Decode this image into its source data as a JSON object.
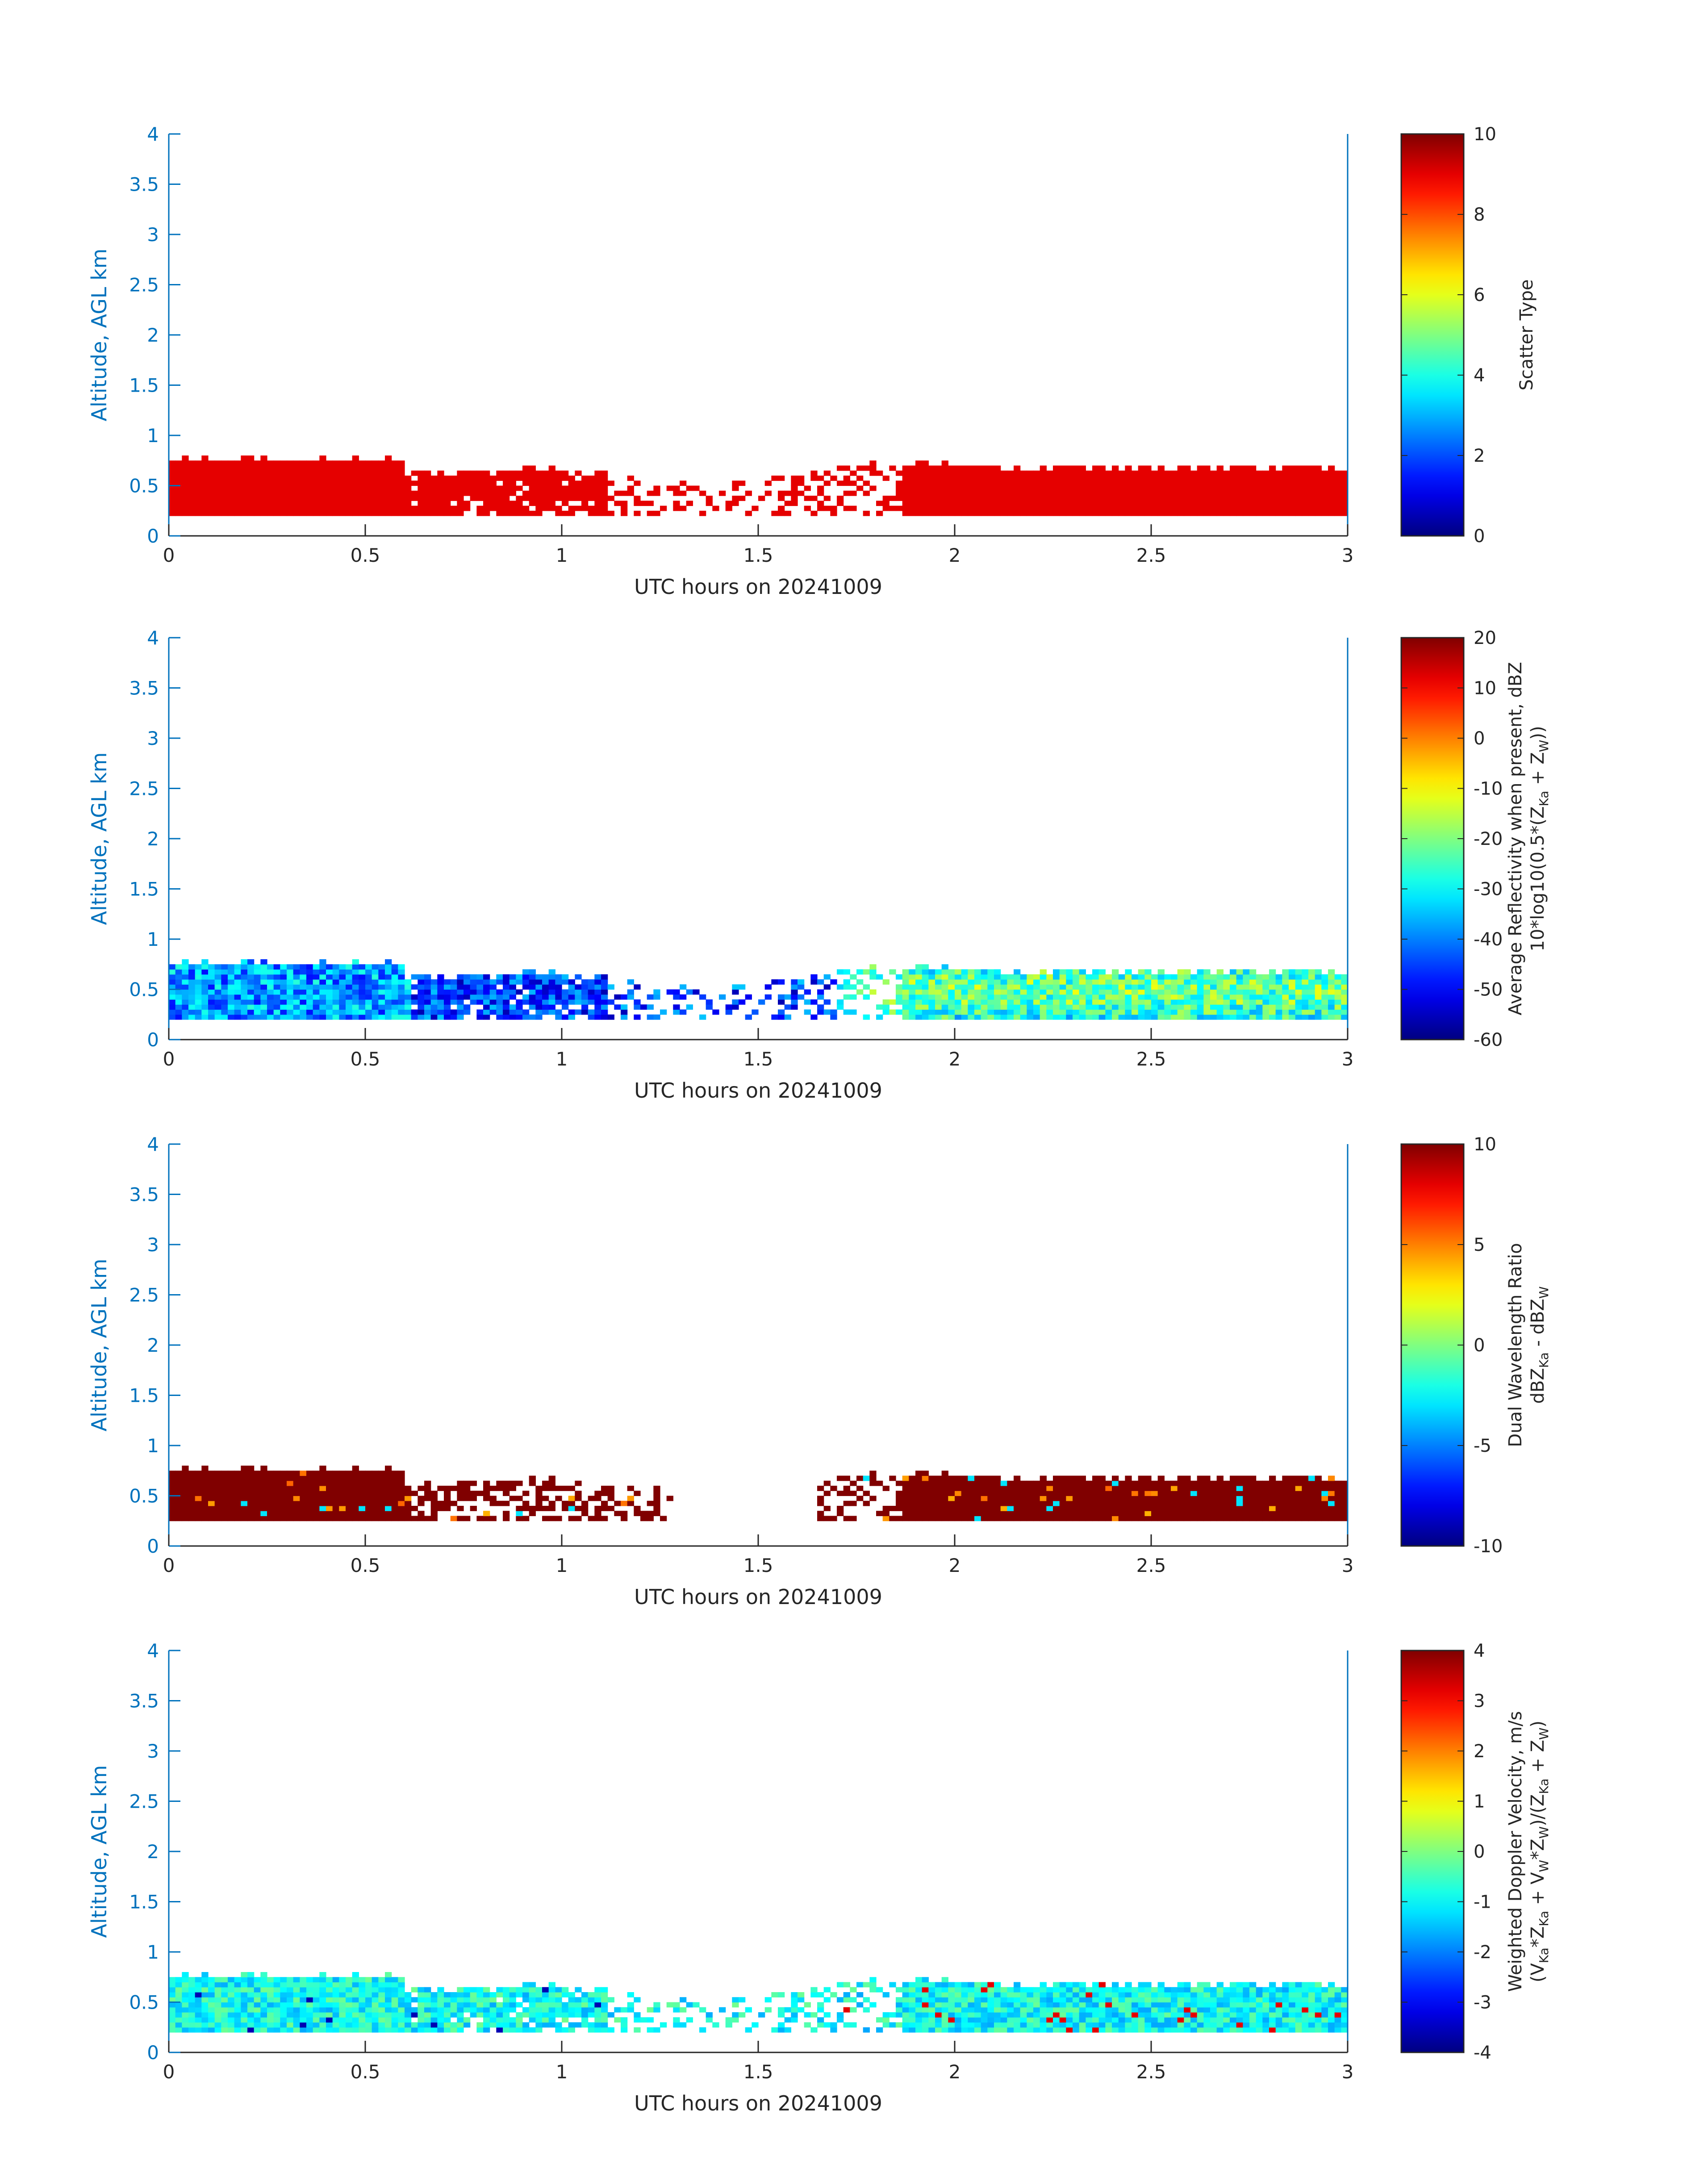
{
  "chart_data": [
    {
      "type": "heatmap",
      "xlabel": "UTC hours on 20241009",
      "ylabel": "Altitude, AGL km",
      "xlim": [
        0,
        3
      ],
      "ylim": [
        0,
        4
      ],
      "xticks": [
        "0",
        "0.5",
        "1",
        "1.5",
        "2",
        "2.5",
        "3"
      ],
      "yticks": [
        "0",
        "0.5",
        "1",
        "1.5",
        "2",
        "2.5",
        "3",
        "3.5",
        "4"
      ],
      "colorbar": {
        "label_lines": [
          [
            "Scatter Type"
          ]
        ],
        "ticks": [
          "0",
          "2",
          "4",
          "6",
          "8",
          "10"
        ],
        "range": [
          0,
          10
        ],
        "colormap": "jet"
      },
      "field": "scatter_type",
      "data_summary": {
        "base_km": 0.2,
        "top_km_range": [
          0.6,
          0.85
        ],
        "value": 9
      }
    },
    {
      "type": "heatmap",
      "xlabel": "UTC hours on 20241009",
      "ylabel": "Altitude, AGL km",
      "xlim": [
        0,
        3
      ],
      "ylim": [
        0,
        4
      ],
      "xticks": [
        "0",
        "0.5",
        "1",
        "1.5",
        "2",
        "2.5",
        "3"
      ],
      "yticks": [
        "0",
        "0.5",
        "1",
        "1.5",
        "2",
        "2.5",
        "3",
        "3.5",
        "4"
      ],
      "colorbar": {
        "label_lines": [
          [
            "Average Reflectivity when present, dBZ"
          ],
          [
            "10*log10(0.5*(Z",
            "Ka",
            " + Z",
            "W",
            "))"
          ]
        ],
        "ticks": [
          "-60",
          "-50",
          "-40",
          "-30",
          "-20",
          "-10",
          "0",
          "10",
          "20"
        ],
        "range": [
          -60,
          20
        ],
        "colormap": "jet"
      },
      "field": "reflectivity_dBZ",
      "data_summary": {
        "base_km": 0.2,
        "top_km_range": [
          0.6,
          0.85
        ],
        "value_range_dBZ": [
          -55,
          -20
        ]
      }
    },
    {
      "type": "heatmap",
      "xlabel": "UTC hours on 20241009",
      "ylabel": "Altitude, AGL km",
      "xlim": [
        0,
        3
      ],
      "ylim": [
        0,
        4
      ],
      "xticks": [
        "0",
        "0.5",
        "1",
        "1.5",
        "2",
        "2.5",
        "3"
      ],
      "yticks": [
        "0",
        "0.5",
        "1",
        "1.5",
        "2",
        "2.5",
        "3",
        "3.5",
        "4"
      ],
      "colorbar": {
        "label_lines": [
          [
            "Dual Wavelength Ratio"
          ],
          [
            "dBZ",
            "Ka",
            " - dBZ",
            "W",
            ""
          ]
        ],
        "ticks": [
          "-10",
          "-5",
          "0",
          "5",
          "10"
        ],
        "range": [
          -10,
          10
        ],
        "colormap": "jet"
      },
      "field": "dual_wavelength_ratio",
      "data_summary": {
        "base_km": 0.25,
        "top_km_range": [
          0.3,
          0.8
        ],
        "value": 10
      }
    },
    {
      "type": "heatmap",
      "xlabel": "UTC hours on 20241009",
      "ylabel": "Altitude, AGL km",
      "xlim": [
        0,
        3
      ],
      "ylim": [
        0,
        4
      ],
      "xticks": [
        "0",
        "0.5",
        "1",
        "1.5",
        "2",
        "2.5",
        "3"
      ],
      "yticks": [
        "0",
        "0.5",
        "1",
        "1.5",
        "2",
        "2.5",
        "3",
        "3.5",
        "4"
      ],
      "colorbar": {
        "label_lines": [
          [
            "Weighted Doppler Velocity, m/s"
          ],
          [
            "(V",
            "Ka",
            "*Z",
            "Ka",
            " + V",
            "W",
            "*Z",
            "W",
            ")/(Z",
            "Ka",
            " + Z",
            "W",
            ")"
          ]
        ],
        "ticks": [
          "-4",
          "-3",
          "-2",
          "-1",
          "0",
          "1",
          "2",
          "3",
          "4"
        ],
        "range": [
          -4,
          4
        ],
        "colormap": "jet"
      },
      "field": "doppler_velocity_ms",
      "data_summary": {
        "base_km": 0.2,
        "top_km_range": [
          0.6,
          0.85
        ],
        "value_range_ms": [
          -1.5,
          1.0
        ]
      }
    }
  ]
}
